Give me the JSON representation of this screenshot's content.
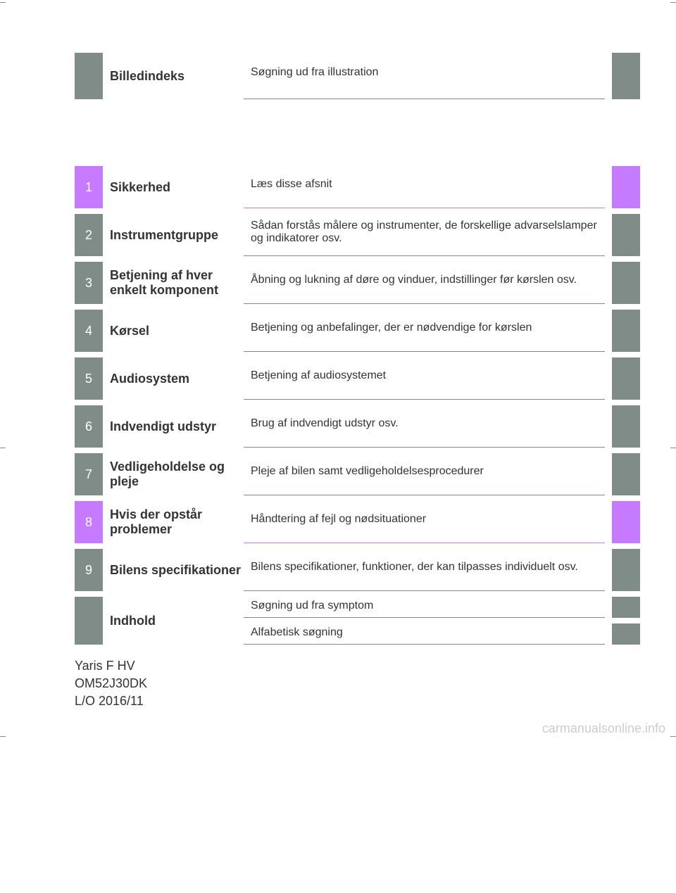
{
  "colors": {
    "gray": "#808c88",
    "purple": "#c57aff",
    "text": "#333333",
    "border": "#808c88",
    "watermark": "#cccccc",
    "white": "#ffffff"
  },
  "top": {
    "title": "Billedindeks",
    "desc": "Søgning ud fra illustration"
  },
  "rows": [
    {
      "num": "1",
      "title": "Sikkerhed",
      "desc": "Læs disse afsnit",
      "highlight": true
    },
    {
      "num": "2",
      "title": "Instrumentgruppe",
      "desc": "Sådan forstås målere og instrumenter, de forskellige advarselslamper og indikatorer osv.",
      "highlight": false
    },
    {
      "num": "3",
      "title": "Betjening af hver enkelt komponent",
      "desc": "Åbning og lukning af døre og vinduer, indstillinger før kørslen osv.",
      "highlight": false
    },
    {
      "num": "4",
      "title": "Kørsel",
      "desc": "Betjening og anbefalinger, der er nødvendige for kørslen",
      "highlight": false
    },
    {
      "num": "5",
      "title": "Audiosystem",
      "desc": "Betjening af audiosystemet",
      "highlight": false
    },
    {
      "num": "6",
      "title": "Indvendigt udstyr",
      "desc": "Brug af indvendigt udstyr osv.",
      "highlight": false
    },
    {
      "num": "7",
      "title": "Vedligeholdelse og pleje",
      "desc": "Pleje af bilen samt vedligeholdelsesprocedurer",
      "highlight": false
    },
    {
      "num": "8",
      "title": "Hvis der opstår problemer",
      "desc": "Håndtering af fejl og nødsituationer",
      "highlight": true
    },
    {
      "num": "9",
      "title": "Bilens specifikationer",
      "desc": "Bilens specifikationer, funktioner, der kan tilpasses individuelt osv.",
      "highlight": false
    }
  ],
  "indhold": {
    "title": "Indhold",
    "sub1": "Søgning ud fra symptom",
    "sub2": "Alfabetisk søgning"
  },
  "footer": {
    "line1": "Yaris F HV",
    "line2": "OM52J30DK",
    "line3": "L/O 2016/11"
  },
  "watermark": "carmanualsonline.info"
}
